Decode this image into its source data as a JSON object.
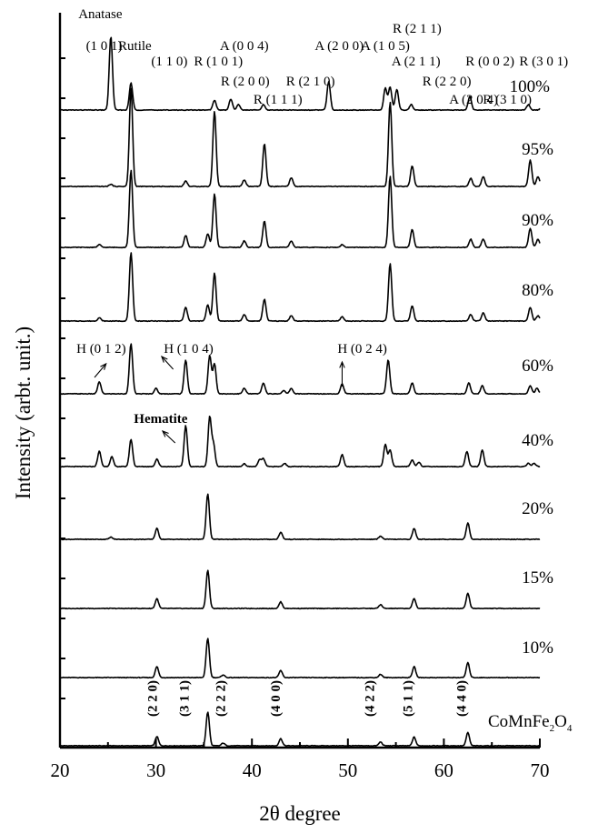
{
  "chart_data": {
    "type": "line",
    "xlabel": "2θ degree",
    "ylabel": "Intensity (arbt. unit.)",
    "xlim": [
      20,
      70
    ],
    "xticks": [
      20,
      30,
      40,
      50,
      60,
      70
    ],
    "grid": false,
    "series": [
      {
        "name": "CoMnFe2O4",
        "label_main": "CoMnFe",
        "label_sub1": "2",
        "label_mid": "O",
        "label_sub2": "4",
        "scale": 1.0,
        "peaks": [
          [
            30.1,
            0.17
          ],
          [
            35.4,
            0.62
          ],
          [
            37.0,
            0.05
          ],
          [
            43.0,
            0.13
          ],
          [
            53.4,
            0.07
          ],
          [
            56.9,
            0.16
          ],
          [
            62.5,
            0.24
          ]
        ]
      },
      {
        "name": "10%",
        "scale": 1.0,
        "peaks": [
          [
            30.1,
            0.2
          ],
          [
            35.4,
            0.72
          ],
          [
            37.0,
            0.05
          ],
          [
            43.0,
            0.13
          ],
          [
            53.4,
            0.06
          ],
          [
            56.9,
            0.2
          ],
          [
            62.5,
            0.27
          ]
        ]
      },
      {
        "name": "15%",
        "scale": 1.0,
        "peaks": [
          [
            30.1,
            0.18
          ],
          [
            35.4,
            0.7
          ],
          [
            43.0,
            0.12
          ],
          [
            53.4,
            0.07
          ],
          [
            56.9,
            0.18
          ],
          [
            62.5,
            0.28
          ]
        ]
      },
      {
        "name": "20%",
        "scale": 1.0,
        "peaks": [
          [
            25.3,
            0.04
          ],
          [
            30.1,
            0.2
          ],
          [
            35.4,
            0.83
          ],
          [
            43.0,
            0.13
          ],
          [
            53.4,
            0.06
          ],
          [
            56.9,
            0.2
          ],
          [
            62.5,
            0.3
          ]
        ]
      },
      {
        "name": "40%",
        "scale": 1.0,
        "peaks": [
          [
            24.1,
            0.28
          ],
          [
            25.4,
            0.18
          ],
          [
            27.4,
            0.5
          ],
          [
            30.1,
            0.14
          ],
          [
            33.1,
            0.75
          ],
          [
            35.6,
            0.9
          ],
          [
            36.0,
            0.4
          ],
          [
            39.2,
            0.05
          ],
          [
            40.8,
            0.12
          ],
          [
            41.2,
            0.14
          ],
          [
            43.4,
            0.06
          ],
          [
            49.4,
            0.22
          ],
          [
            53.9,
            0.4
          ],
          [
            54.4,
            0.3
          ],
          [
            56.7,
            0.12
          ],
          [
            57.4,
            0.08
          ],
          [
            62.4,
            0.28
          ],
          [
            64.0,
            0.3
          ],
          [
            68.8,
            0.06
          ],
          [
            69.4,
            0.06
          ]
        ]
      },
      {
        "name": "60%",
        "scale": 1.0,
        "peaks": [
          [
            24.1,
            0.22
          ],
          [
            27.4,
            0.92
          ],
          [
            30.0,
            0.1
          ],
          [
            33.1,
            0.62
          ],
          [
            35.6,
            0.7
          ],
          [
            36.1,
            0.55
          ],
          [
            39.2,
            0.1
          ],
          [
            41.2,
            0.2
          ],
          [
            43.3,
            0.06
          ],
          [
            44.1,
            0.1
          ],
          [
            49.4,
            0.18
          ],
          [
            54.2,
            0.62
          ],
          [
            56.7,
            0.2
          ],
          [
            62.6,
            0.2
          ],
          [
            64.0,
            0.15
          ],
          [
            69.0,
            0.15
          ],
          [
            69.7,
            0.1
          ]
        ]
      },
      {
        "name": "80%",
        "scale": 1.0,
        "peaks": [
          [
            24.1,
            0.06
          ],
          [
            27.4,
            1.25
          ],
          [
            33.1,
            0.25
          ],
          [
            35.4,
            0.3
          ],
          [
            36.1,
            0.88
          ],
          [
            39.2,
            0.12
          ],
          [
            41.3,
            0.4
          ],
          [
            44.1,
            0.1
          ],
          [
            49.4,
            0.08
          ],
          [
            54.4,
            1.05
          ],
          [
            56.7,
            0.28
          ],
          [
            62.8,
            0.12
          ],
          [
            64.1,
            0.15
          ],
          [
            69.0,
            0.25
          ],
          [
            69.8,
            0.1
          ]
        ]
      },
      {
        "name": "90%",
        "scale": 1.0,
        "peaks": [
          [
            24.1,
            0.05
          ],
          [
            27.4,
            1.42
          ],
          [
            33.1,
            0.22
          ],
          [
            35.4,
            0.25
          ],
          [
            36.1,
            0.98
          ],
          [
            39.2,
            0.12
          ],
          [
            41.3,
            0.48
          ],
          [
            44.1,
            0.12
          ],
          [
            49.4,
            0.05
          ],
          [
            54.4,
            1.3
          ],
          [
            56.7,
            0.33
          ],
          [
            62.8,
            0.15
          ],
          [
            64.1,
            0.15
          ],
          [
            69.0,
            0.35
          ],
          [
            69.8,
            0.15
          ]
        ]
      },
      {
        "name": "95%",
        "scale": 1.0,
        "peaks": [
          [
            25.3,
            0.04
          ],
          [
            27.4,
            1.8
          ],
          [
            33.1,
            0.1
          ],
          [
            36.1,
            1.38
          ],
          [
            39.2,
            0.12
          ],
          [
            41.3,
            0.78
          ],
          [
            44.1,
            0.16
          ],
          [
            54.4,
            1.55
          ],
          [
            56.7,
            0.38
          ],
          [
            62.8,
            0.15
          ],
          [
            64.1,
            0.18
          ],
          [
            69.0,
            0.48
          ],
          [
            69.8,
            0.18
          ]
        ]
      },
      {
        "name": "100%",
        "scale": 1.0,
        "peaks": [
          [
            25.3,
            1.35
          ],
          [
            27.4,
            0.5
          ],
          [
            36.1,
            0.18
          ],
          [
            37.8,
            0.2
          ],
          [
            38.6,
            0.1
          ],
          [
            41.2,
            0.1
          ],
          [
            48.0,
            0.52
          ],
          [
            53.9,
            0.4
          ],
          [
            54.4,
            0.42
          ],
          [
            55.1,
            0.38
          ],
          [
            56.6,
            0.1
          ],
          [
            62.7,
            0.25
          ],
          [
            68.8,
            0.1
          ],
          [
            70.3,
            0.12
          ]
        ]
      }
    ],
    "annotations": {
      "top_labels": [
        {
          "text": "Anatase",
          "x": 24.2,
          "row": 0
        },
        {
          "text": "(1 0 1)",
          "x": 24.6,
          "row": 1
        },
        {
          "text": "Rutile",
          "x": 27.8,
          "row": 1
        },
        {
          "text": "(1 1 0)",
          "x": 31.4,
          "row": 2
        },
        {
          "text": "R (1 0 1)",
          "x": 36.5,
          "row": 2
        },
        {
          "text": "A (0 0 4)",
          "x": 39.2,
          "row": 1
        },
        {
          "text": "R (2 0 0)",
          "x": 39.3,
          "row": 3
        },
        {
          "text": "R (1 1 1)",
          "x": 42.7,
          "row": 4
        },
        {
          "text": "R (2 1 0)",
          "x": 46.1,
          "row": 3
        },
        {
          "text": "A (2 0 0)",
          "x": 49.1,
          "row": 1
        },
        {
          "text": "A (1 0 5)",
          "x": 53.9,
          "row": 1
        },
        {
          "text": "R (2 1 1)",
          "x": 57.2,
          "row": 0
        },
        {
          "text": "A (2 1 1)",
          "x": 57.1,
          "row": 2
        },
        {
          "text": "R (2 2 0)",
          "x": 60.3,
          "row": 3
        },
        {
          "text": "A (2 0 4)",
          "x": 63.1,
          "row": 4
        },
        {
          "text": "R (0 0 2)",
          "x": 64.8,
          "row": 2
        },
        {
          "text": "R (3 1 0)",
          "x": 66.6,
          "row": 4
        },
        {
          "text": "R (3 0 1)",
          "x": 70.4,
          "row": 2
        }
      ],
      "hematite_labels": [
        {
          "text": "H (0 1 2)",
          "x": 24.3
        },
        {
          "text": "H (1 0 4)",
          "x": 33.4
        },
        {
          "text": "H (0 2 4)",
          "x": 51.5
        }
      ],
      "hematite_title": "Hematite",
      "spinel_labels": [
        {
          "text": "(2 2 0)",
          "x": 30.1
        },
        {
          "text": "(3 1 1)",
          "x": 33.4
        },
        {
          "text": "(2 2 2)",
          "x": 37.2
        },
        {
          "text": "(4 0 0)",
          "x": 42.9
        },
        {
          "text": "(4 2 2)",
          "x": 52.7
        },
        {
          "text": "(5 1 1)",
          "x": 56.7
        },
        {
          "text": "(4 4 0)",
          "x": 62.3
        }
      ]
    }
  }
}
